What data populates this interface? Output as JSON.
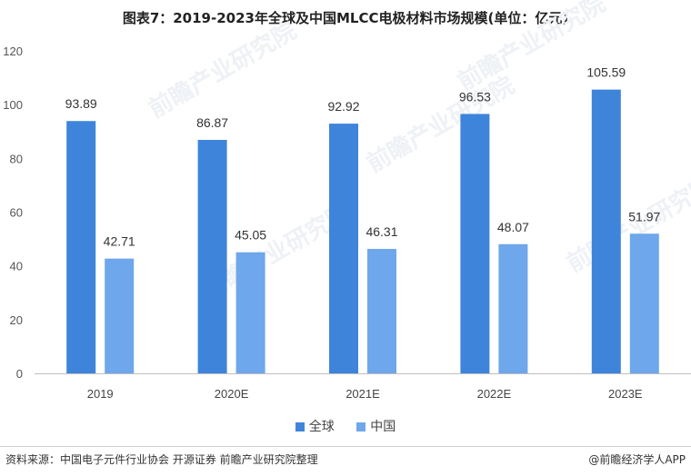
{
  "title": "图表7：2019-2023年全球及中国MLCC电极材料市场规模(单位：亿元)",
  "chart_data": {
    "type": "bar",
    "categories": [
      "2019",
      "2020E",
      "2021E",
      "2022E",
      "2023E"
    ],
    "series": [
      {
        "name": "全球",
        "values": [
          93.89,
          86.87,
          92.92,
          96.53,
          105.59
        ],
        "color": "#3f84db"
      },
      {
        "name": "中国",
        "values": [
          42.71,
          45.05,
          46.31,
          48.07,
          51.97
        ],
        "color": "#6ea7eb"
      }
    ],
    "ylim": [
      0,
      120
    ],
    "yticks": [
      0,
      20,
      40,
      60,
      80,
      100,
      120
    ],
    "grid": false,
    "legend_position": "bottom"
  },
  "legend": [
    {
      "label": "全球",
      "color": "#3f84db"
    },
    {
      "label": "中国",
      "color": "#6ea7eb"
    }
  ],
  "source": "资料来源：中国电子元件行业协会 开源证券 前瞻产业研究院整理",
  "brand": "@前瞻经济学人APP",
  "watermark": "前瞻产业研究院"
}
